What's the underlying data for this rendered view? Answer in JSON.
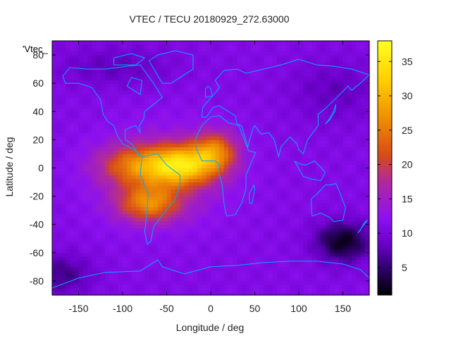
{
  "chart_data": {
    "type": "heatmap",
    "title": "VTEC / TECU 20180929_272.63000",
    "xlabel": "Longitude / deg",
    "ylabel": "Latitude / deg",
    "key_label": "'Vtec_",
    "xlim": [
      -180,
      180
    ],
    "ylim": [
      -90,
      90
    ],
    "x_ticks": [
      -150,
      -100,
      -50,
      0,
      50,
      100,
      150
    ],
    "y_ticks": [
      -80,
      -60,
      -40,
      -20,
      0,
      20,
      40,
      60,
      80
    ],
    "colorbar": {
      "range": [
        1,
        38
      ],
      "ticks": [
        5,
        10,
        15,
        20,
        25,
        30,
        35
      ],
      "palette": [
        "#000000",
        "#2a0064",
        "#6a00c8",
        "#8c10f0",
        "#b02a9c",
        "#d64a1a",
        "#f09000",
        "#ffd000",
        "#ffff20"
      ],
      "palette_stops": [
        0,
        0.1,
        0.2,
        0.3,
        0.45,
        0.55,
        0.7,
        0.85,
        1.0
      ]
    },
    "vtec_field": {
      "background": 11.0,
      "features": [
        {
          "name": "equatorial-anomaly-core",
          "lon": -35,
          "lat": 2,
          "sigma_lon": 28,
          "sigma_lat": 10,
          "peak": 20
        },
        {
          "name": "africa-extension",
          "lon": 5,
          "lat": 12,
          "sigma_lon": 18,
          "sigma_lat": 10,
          "peak": 12
        },
        {
          "name": "western-lobe",
          "lon": -90,
          "lat": 2,
          "sigma_lon": 28,
          "sigma_lat": 10,
          "peak": 10
        },
        {
          "name": "southern-crest",
          "lon": -70,
          "lat": -25,
          "sigma_lon": 25,
          "sigma_lat": 9,
          "peak": 13
        },
        {
          "name": "broad-daytime-enhancement",
          "lon": -55,
          "lat": -5,
          "sigma_lon": 55,
          "sigma_lat": 25,
          "peak": 4
        },
        {
          "name": "australia-depletion",
          "lon": 150,
          "lat": -52,
          "sigma_lon": 22,
          "sigma_lat": 10,
          "peak": -9
        },
        {
          "name": "north-america-high-lat-low",
          "lon": -110,
          "lat": 72,
          "sigma_lon": 45,
          "sigma_lat": 10,
          "peak": -3
        },
        {
          "name": "asia-midlat-low",
          "lon": 140,
          "lat": 55,
          "sigma_lon": 35,
          "sigma_lat": 15,
          "peak": -3
        },
        {
          "name": "southern-polar-low",
          "lon": -170,
          "lat": -75,
          "sigma_lon": 25,
          "sigma_lat": 10,
          "peak": -5
        }
      ]
    }
  },
  "map": {
    "coastline_color": "#00aaff",
    "coastlines": [
      {
        "name": "north-america",
        "points": [
          [
            -168,
            65
          ],
          [
            -160,
            71
          ],
          [
            -140,
            70
          ],
          [
            -120,
            70
          ],
          [
            -95,
            72
          ],
          [
            -80,
            73
          ],
          [
            -65,
            60
          ],
          [
            -60,
            55
          ],
          [
            -55,
            50
          ],
          [
            -65,
            45
          ],
          [
            -75,
            40
          ],
          [
            -76,
            35
          ],
          [
            -81,
            30
          ],
          [
            -80,
            25
          ],
          [
            -85,
            30
          ],
          [
            -90,
            29
          ],
          [
            -97,
            27
          ],
          [
            -97,
            20
          ],
          [
            -92,
            18
          ],
          [
            -88,
            16
          ],
          [
            -83,
            10
          ],
          [
            -78,
            8
          ],
          [
            -85,
            12
          ],
          [
            -90,
            14
          ],
          [
            -100,
            17
          ],
          [
            -106,
            23
          ],
          [
            -110,
            30
          ],
          [
            -117,
            33
          ],
          [
            -122,
            38
          ],
          [
            -125,
            48
          ],
          [
            -135,
            57
          ],
          [
            -150,
            60
          ],
          [
            -165,
            60
          ],
          [
            -168,
            65
          ]
        ]
      },
      {
        "name": "greenland",
        "points": [
          [
            -55,
            60
          ],
          [
            -45,
            60
          ],
          [
            -20,
            70
          ],
          [
            -20,
            80
          ],
          [
            -40,
            83
          ],
          [
            -60,
            80
          ],
          [
            -70,
            76
          ],
          [
            -55,
            60
          ]
        ]
      },
      {
        "name": "south-america",
        "points": [
          [
            -78,
            8
          ],
          [
            -60,
            10
          ],
          [
            -50,
            2
          ],
          [
            -35,
            -5
          ],
          [
            -35,
            -10
          ],
          [
            -40,
            -22
          ],
          [
            -48,
            -28
          ],
          [
            -57,
            -35
          ],
          [
            -65,
            -42
          ],
          [
            -68,
            -52
          ],
          [
            -72,
            -54
          ],
          [
            -75,
            -45
          ],
          [
            -73,
            -35
          ],
          [
            -71,
            -18
          ],
          [
            -80,
            -5
          ],
          [
            -78,
            8
          ]
        ]
      },
      {
        "name": "eurasia",
        "points": [
          [
            -10,
            36
          ],
          [
            -9,
            43
          ],
          [
            -2,
            48
          ],
          [
            5,
            53
          ],
          [
            10,
            57
          ],
          [
            5,
            62
          ],
          [
            15,
            69
          ],
          [
            30,
            70
          ],
          [
            40,
            67
          ],
          [
            60,
            70
          ],
          [
            80,
            73
          ],
          [
            100,
            77
          ],
          [
            120,
            73
          ],
          [
            140,
            72
          ],
          [
            160,
            70
          ],
          [
            180,
            66
          ],
          [
            170,
            60
          ],
          [
            160,
            55
          ],
          [
            156,
            58
          ],
          [
            140,
            48
          ],
          [
            130,
            42
          ],
          [
            122,
            38
          ],
          [
            122,
            30
          ],
          [
            110,
            20
          ],
          [
            105,
            10
          ],
          [
            100,
            13
          ],
          [
            98,
            17
          ],
          [
            90,
            22
          ],
          [
            80,
            15
          ],
          [
            77,
            8
          ],
          [
            72,
            20
          ],
          [
            66,
            25
          ],
          [
            57,
            24
          ],
          [
            50,
            30
          ],
          [
            48,
            28
          ],
          [
            42,
            15
          ],
          [
            35,
            30
          ],
          [
            30,
            31
          ],
          [
            28,
            37
          ],
          [
            20,
            40
          ],
          [
            10,
            44
          ],
          [
            3,
            43
          ],
          [
            -5,
            36
          ],
          [
            -10,
            36
          ]
        ]
      },
      {
        "name": "africa",
        "points": [
          [
            -17,
            21
          ],
          [
            -17,
            15
          ],
          [
            -10,
            5
          ],
          [
            5,
            5
          ],
          [
            9,
            3
          ],
          [
            10,
            -5
          ],
          [
            13,
            -12
          ],
          [
            15,
            -25
          ],
          [
            18,
            -34
          ],
          [
            28,
            -33
          ],
          [
            35,
            -25
          ],
          [
            40,
            -15
          ],
          [
            40,
            -5
          ],
          [
            51,
            11
          ],
          [
            43,
            12
          ],
          [
            32,
            30
          ],
          [
            20,
            32
          ],
          [
            10,
            37
          ],
          [
            0,
            36
          ],
          [
            -10,
            30
          ],
          [
            -17,
            21
          ]
        ]
      },
      {
        "name": "australia",
        "points": [
          [
            114,
            -22
          ],
          [
            115,
            -34
          ],
          [
            125,
            -32
          ],
          [
            135,
            -35
          ],
          [
            140,
            -38
          ],
          [
            150,
            -37
          ],
          [
            153,
            -28
          ],
          [
            145,
            -15
          ],
          [
            142,
            -11
          ],
          [
            136,
            -12
          ],
          [
            130,
            -12
          ],
          [
            123,
            -17
          ],
          [
            114,
            -22
          ]
        ]
      },
      {
        "name": "antarctica",
        "points": [
          [
            -180,
            -85
          ],
          [
            -150,
            -78
          ],
          [
            -120,
            -74
          ],
          [
            -80,
            -73
          ],
          [
            -60,
            -65
          ],
          [
            -55,
            -70
          ],
          [
            -30,
            -75
          ],
          [
            0,
            -70
          ],
          [
            30,
            -69
          ],
          [
            60,
            -67
          ],
          [
            90,
            -66
          ],
          [
            120,
            -66
          ],
          [
            150,
            -68
          ],
          [
            170,
            -72
          ],
          [
            180,
            -78
          ]
        ]
      },
      {
        "name": "indonesia",
        "points": [
          [
            95,
            5
          ],
          [
            105,
            -6
          ],
          [
            115,
            -8
          ],
          [
            125,
            -9
          ],
          [
            130,
            -3
          ],
          [
            118,
            5
          ],
          [
            108,
            2
          ],
          [
            100,
            3
          ],
          [
            95,
            5
          ]
        ]
      },
      {
        "name": "madagascar",
        "points": [
          [
            44,
            -25
          ],
          [
            47,
            -25
          ],
          [
            50,
            -15
          ],
          [
            49,
            -12
          ],
          [
            44,
            -18
          ],
          [
            44,
            -25
          ]
        ]
      },
      {
        "name": "japan",
        "points": [
          [
            130,
            31
          ],
          [
            135,
            34
          ],
          [
            141,
            40
          ],
          [
            142,
            45
          ],
          [
            140,
            41
          ],
          [
            135,
            35
          ],
          [
            130,
            31
          ]
        ]
      },
      {
        "name": "new-zealand",
        "points": [
          [
            167,
            -46
          ],
          [
            173,
            -41
          ],
          [
            178,
            -37
          ],
          [
            174,
            -39
          ],
          [
            170,
            -44
          ],
          [
            167,
            -46
          ]
        ]
      },
      {
        "name": "uk",
        "points": [
          [
            -6,
            50
          ],
          [
            2,
            51
          ],
          [
            0,
            56
          ],
          [
            -3,
            58
          ],
          [
            -6,
            56
          ],
          [
            -6,
            50
          ]
        ]
      },
      {
        "name": "canadian-arctic-islands",
        "points": [
          [
            -110,
            73
          ],
          [
            -85,
            73
          ],
          [
            -75,
            78
          ],
          [
            -90,
            81
          ],
          [
            -110,
            78
          ],
          [
            -110,
            73
          ]
        ]
      },
      {
        "name": "hudson-bay",
        "points": [
          [
            -95,
            58
          ],
          [
            -80,
            52
          ],
          [
            -78,
            62
          ],
          [
            -90,
            64
          ],
          [
            -95,
            58
          ]
        ]
      }
    ]
  }
}
